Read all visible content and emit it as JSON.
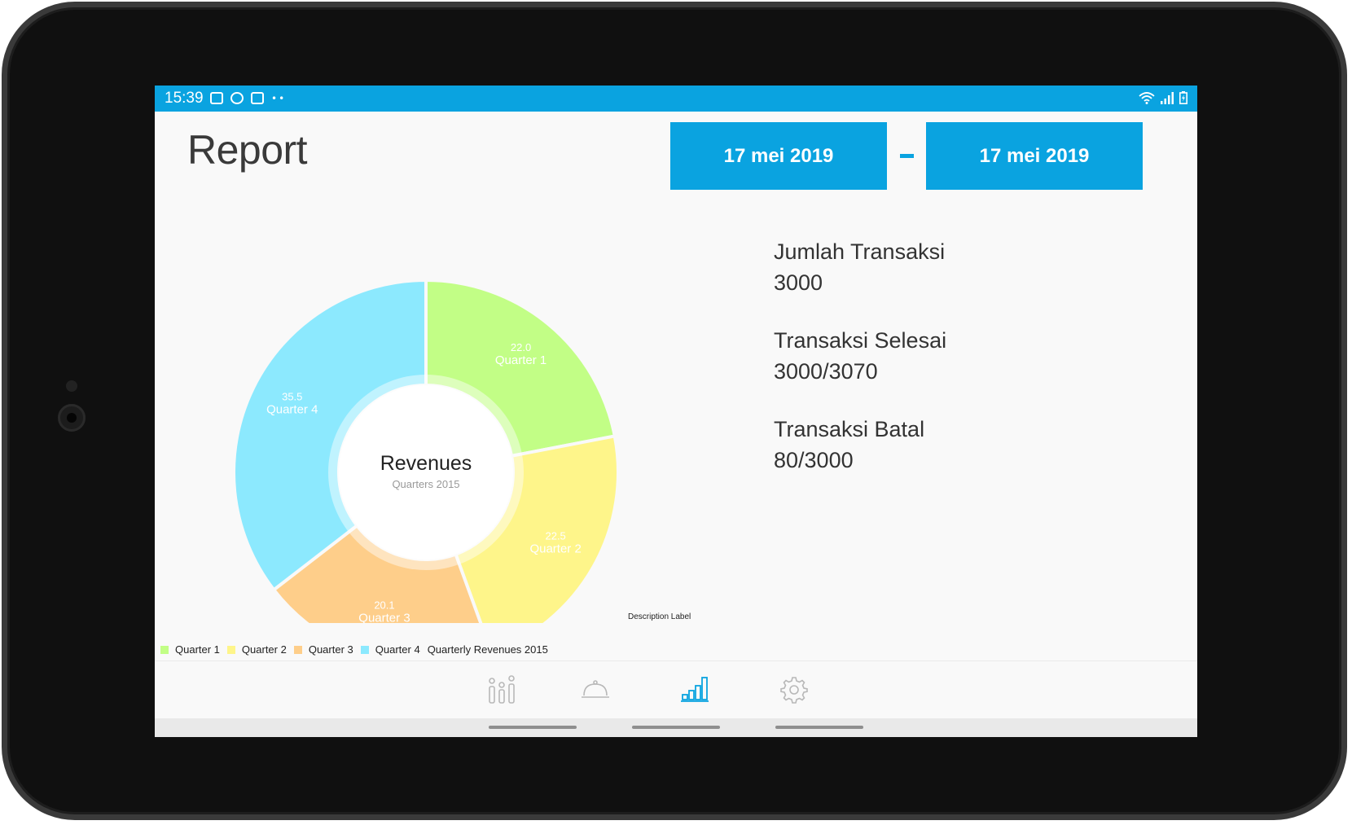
{
  "status_bar": {
    "time": "15:39"
  },
  "page": {
    "title": "Report"
  },
  "date_range": {
    "start": "17 mei 2019",
    "end": "17 mei 2019"
  },
  "chart_data": {
    "type": "pie",
    "donut": true,
    "center_title": "Revenues",
    "center_subtitle": "Quarters 2015",
    "title": "Quarterly Revenues 2015",
    "description": "Description Label",
    "categories": [
      "Quarter 1",
      "Quarter 2",
      "Quarter 3",
      "Quarter 4"
    ],
    "values": [
      22.0,
      22.5,
      20.1,
      35.5
    ],
    "value_labels": [
      "22.0",
      "22.5",
      "20.1",
      "35.5"
    ],
    "colors": [
      "#c2fe86",
      "#fef58a",
      "#fece8a",
      "#8ce9fe"
    ],
    "legend": {
      "placement": "bottom-left",
      "items": [
        "Quarter 1",
        "Quarter 2",
        "Quarter 3",
        "Quarter 4"
      ],
      "dataset_label": "Quarterly Revenues 2015"
    }
  },
  "stats": [
    {
      "label": "Jumlah Transaksi",
      "value": "3000"
    },
    {
      "label": "Transaksi Selesai",
      "value": "3000/3070"
    },
    {
      "label": "Transaksi Batal",
      "value": "80/3000"
    }
  ],
  "nav": {
    "items": [
      {
        "icon": "people-icon",
        "active": false
      },
      {
        "icon": "service-bell-icon",
        "active": false
      },
      {
        "icon": "bar-chart-icon",
        "active": true
      },
      {
        "icon": "gear-icon",
        "active": false
      }
    ],
    "active_color": "#0aa3e0",
    "inactive_color": "#b8b8b8"
  }
}
